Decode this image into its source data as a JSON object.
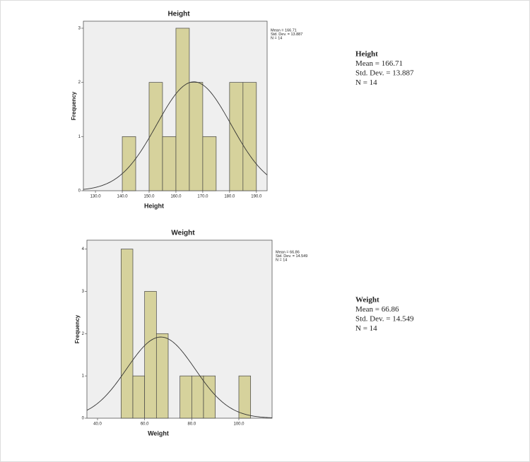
{
  "chart_data": [
    {
      "type": "histogram",
      "title": "Height",
      "x_label": "Height",
      "y_label": "Frequency",
      "bins": [
        140,
        145,
        150,
        155,
        160,
        165,
        170,
        175,
        180,
        185,
        190
      ],
      "values": [
        1,
        0,
        2,
        1,
        3,
        2,
        1,
        0,
        2,
        2
      ],
      "color": "#d6d29c",
      "xlim": [
        125.5,
        194
      ],
      "ylim": [
        0,
        3.13
      ],
      "xticks": [
        {
          "value": 130,
          "label": "130.0"
        },
        {
          "value": 140,
          "label": "140.0"
        },
        {
          "value": 150,
          "label": "150.0"
        },
        {
          "value": 160,
          "label": "160.0"
        },
        {
          "value": 170,
          "label": "170.0"
        },
        {
          "value": 180,
          "label": "180.0"
        },
        {
          "value": 190,
          "label": "190.0"
        }
      ],
      "yticks": [
        0,
        1,
        2,
        3
      ],
      "stats": {
        "mean": 166.71,
        "sd": 13.887,
        "n": 14
      },
      "stats_labels": [
        "Mean = 166.71",
        "Std. Dev. = 13.887",
        "N = 14"
      ]
    },
    {
      "type": "histogram",
      "title": "Weight",
      "x_label": "Weight",
      "y_label": "Frequency",
      "bins": [
        50,
        55,
        60,
        65,
        70,
        75,
        80,
        85,
        90,
        95,
        100,
        105
      ],
      "values": [
        4,
        1,
        3,
        2,
        0,
        1,
        1,
        1,
        0,
        0,
        1
      ],
      "color": "#d6d29c",
      "xlim": [
        35.5,
        114.1
      ],
      "ylim": [
        0,
        4.21
      ],
      "xticks": [
        {
          "value": 40,
          "label": "40.0"
        },
        {
          "value": 60,
          "label": "60.0"
        },
        {
          "value": 80,
          "label": "80.0"
        },
        {
          "value": 100,
          "label": "100.0"
        }
      ],
      "yticks": [
        0,
        1,
        2,
        3,
        4
      ],
      "stats": {
        "mean": 66.86,
        "sd": 14.549,
        "n": 14
      },
      "stats_labels": [
        "Mean = 66.86",
        "Std. Dev. = 14.549",
        "N = 14"
      ]
    }
  ]
}
